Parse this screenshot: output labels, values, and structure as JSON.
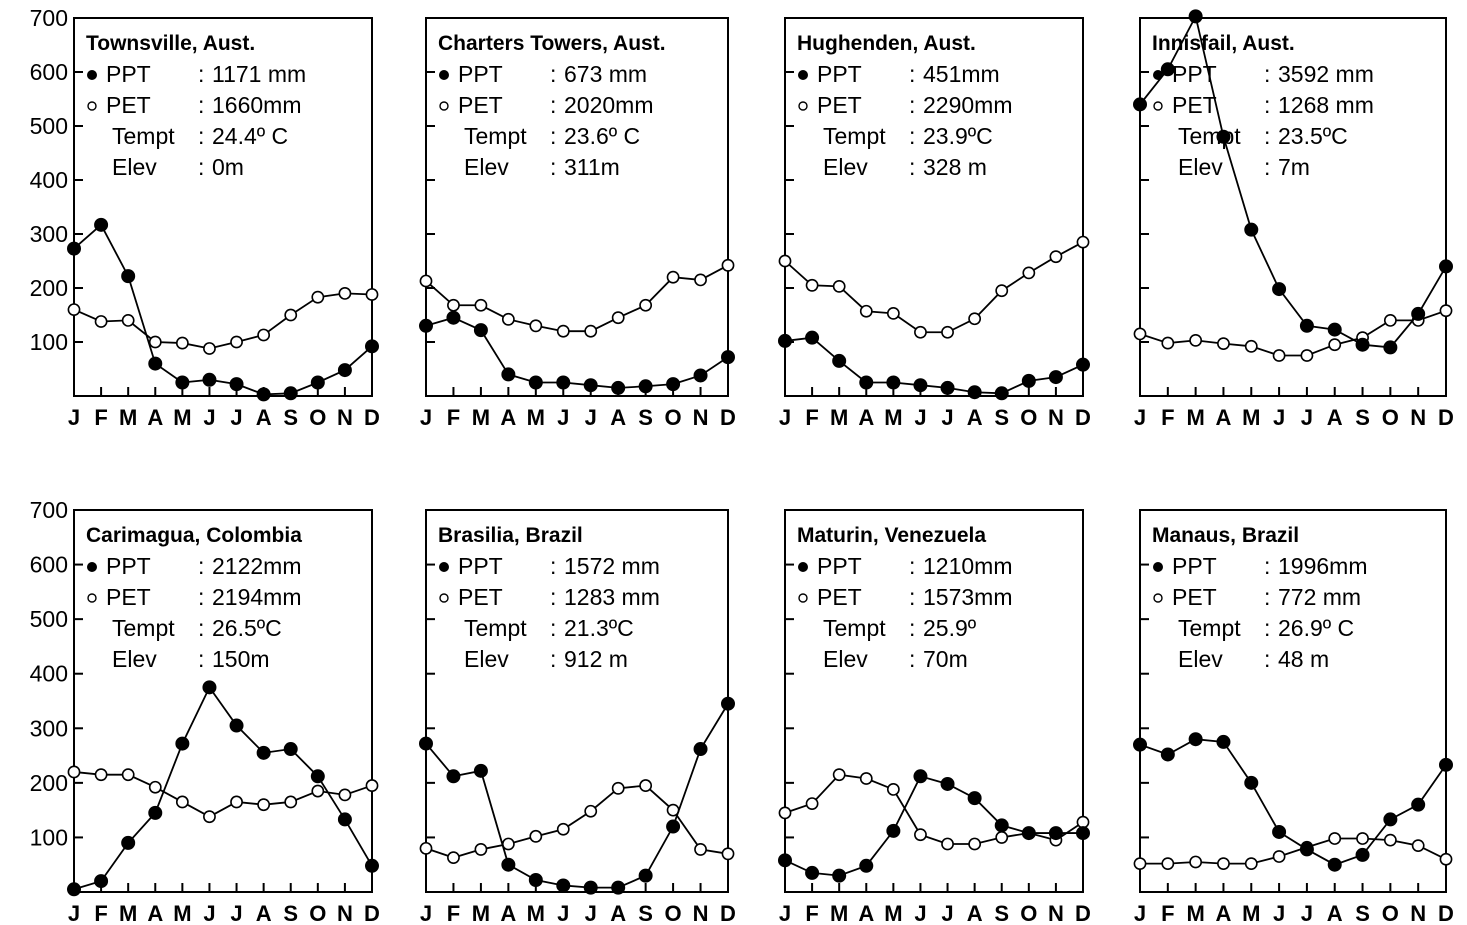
{
  "figure": {
    "month_labels": [
      "J",
      "F",
      "M",
      "A",
      "M",
      "J",
      "J",
      "A",
      "S",
      "O",
      "N",
      "D"
    ],
    "y_tick_labels": [
      "700",
      "600",
      "500",
      "400",
      "300",
      "200",
      "100"
    ],
    "y_tick_values": [
      700,
      600,
      500,
      400,
      300,
      200,
      100
    ]
  },
  "chart_data": [
    {
      "type": "line",
      "title": "Townsville, Aust.",
      "ylim": [
        0,
        700
      ],
      "grid": false,
      "categories": [
        "J",
        "F",
        "M",
        "A",
        "M",
        "J",
        "J",
        "A",
        "S",
        "O",
        "N",
        "D"
      ],
      "info": [
        {
          "marker": "filled",
          "label": "PPT",
          "sep": ":",
          "value": "1171 mm"
        },
        {
          "marker": "open",
          "label": "PET",
          "sep": ":",
          "value": "1660mm"
        },
        {
          "marker": "none",
          "label": "Tempt",
          "sep": ":",
          "value": "24.4º C"
        },
        {
          "marker": "none",
          "label": "Elev",
          "sep": ":",
          "value": "0m"
        }
      ],
      "series": [
        {
          "name": "PPT",
          "marker": "filled",
          "values": [
            273,
            317,
            222,
            60,
            25,
            30,
            22,
            3,
            5,
            25,
            48,
            92
          ]
        },
        {
          "name": "PET",
          "marker": "open",
          "values": [
            160,
            138,
            140,
            100,
            98,
            88,
            100,
            113,
            150,
            183,
            190,
            188
          ]
        }
      ]
    },
    {
      "type": "line",
      "title": "Charters Towers, Aust.",
      "ylim": [
        0,
        700
      ],
      "grid": false,
      "categories": [
        "J",
        "F",
        "M",
        "A",
        "M",
        "J",
        "J",
        "A",
        "S",
        "O",
        "N",
        "D"
      ],
      "info": [
        {
          "marker": "filled",
          "label": "PPT",
          "sep": ":",
          "value": "673 mm"
        },
        {
          "marker": "open",
          "label": "PET",
          "sep": ":",
          "value": "2020mm"
        },
        {
          "marker": "none",
          "label": "Tempt",
          "sep": ":",
          "value": "23.6º C"
        },
        {
          "marker": "none",
          "label": "Elev",
          "sep": ":",
          "value": "311m"
        }
      ],
      "series": [
        {
          "name": "PPT",
          "marker": "filled",
          "values": [
            130,
            145,
            122,
            40,
            25,
            25,
            20,
            15,
            18,
            22,
            38,
            72
          ]
        },
        {
          "name": "PET",
          "marker": "open",
          "values": [
            213,
            168,
            168,
            142,
            130,
            120,
            120,
            145,
            168,
            220,
            215,
            242
          ]
        }
      ]
    },
    {
      "type": "line",
      "title": "Hughenden, Aust.",
      "ylim": [
        0,
        700
      ],
      "grid": false,
      "categories": [
        "J",
        "F",
        "M",
        "A",
        "M",
        "J",
        "J",
        "A",
        "S",
        "O",
        "N",
        "D"
      ],
      "info": [
        {
          "marker": "filled",
          "label": "PPT",
          "sep": ":",
          "value": "451mm"
        },
        {
          "marker": "open",
          "label": "PET",
          "sep": ":",
          "value": "2290mm"
        },
        {
          "marker": "none",
          "label": "Tempt",
          "sep": ":",
          "value": "23.9ºC"
        },
        {
          "marker": "none",
          "label": "Elev",
          "sep": ":",
          "value": "328 m"
        }
      ],
      "series": [
        {
          "name": "PPT",
          "marker": "filled",
          "values": [
            102,
            108,
            65,
            25,
            25,
            20,
            15,
            7,
            5,
            28,
            35,
            58
          ]
        },
        {
          "name": "PET",
          "marker": "open",
          "values": [
            250,
            205,
            203,
            157,
            153,
            118,
            118,
            143,
            195,
            228,
            258,
            285
          ]
        }
      ]
    },
    {
      "type": "line",
      "title": "Innisfail, Aust.",
      "ylim": [
        0,
        700
      ],
      "grid": false,
      "categories": [
        "J",
        "F",
        "M",
        "A",
        "M",
        "J",
        "J",
        "A",
        "S",
        "O",
        "N",
        "D"
      ],
      "info": [
        {
          "marker": "filled",
          "label": "PPT",
          "sep": ":",
          "value": "3592 mm"
        },
        {
          "marker": "open",
          "label": "PET",
          "sep": ":",
          "value": "1268 mm"
        },
        {
          "marker": "none",
          "label": "Tempt",
          "sep": ":",
          "value": "23.5ºC"
        },
        {
          "marker": "none",
          "label": "Elev",
          "sep": ":",
          "value": "7m"
        }
      ],
      "series": [
        {
          "name": "PPT",
          "marker": "filled",
          "values": [
            540,
            605,
            703,
            480,
            308,
            198,
            130,
            123,
            95,
            90,
            152,
            240
          ]
        },
        {
          "name": "PET",
          "marker": "open",
          "values": [
            115,
            98,
            103,
            97,
            92,
            75,
            75,
            95,
            108,
            140,
            140,
            158
          ]
        }
      ]
    },
    {
      "type": "line",
      "title": "Carimagua, Colombia",
      "ylim": [
        0,
        700
      ],
      "grid": false,
      "categories": [
        "J",
        "F",
        "M",
        "A",
        "M",
        "J",
        "J",
        "A",
        "S",
        "O",
        "N",
        "D"
      ],
      "info": [
        {
          "marker": "filled",
          "label": "PPT",
          "sep": ":",
          "value": "2122mm"
        },
        {
          "marker": "open",
          "label": "PET",
          "sep": ":",
          "value": "2194mm"
        },
        {
          "marker": "none",
          "label": "Tempt",
          "sep": ":",
          "value": "26.5ºC"
        },
        {
          "marker": "none",
          "label": "Elev",
          "sep": ":",
          "value": "150m"
        }
      ],
      "series": [
        {
          "name": "PPT",
          "marker": "filled",
          "values": [
            5,
            20,
            90,
            145,
            272,
            375,
            305,
            255,
            262,
            212,
            133,
            48
          ]
        },
        {
          "name": "PET",
          "marker": "open",
          "values": [
            220,
            215,
            215,
            192,
            165,
            138,
            165,
            160,
            165,
            185,
            178,
            195
          ]
        }
      ]
    },
    {
      "type": "line",
      "title": "Brasilia, Brazil",
      "ylim": [
        0,
        700
      ],
      "grid": false,
      "categories": [
        "J",
        "F",
        "M",
        "A",
        "M",
        "J",
        "J",
        "A",
        "S",
        "O",
        "N",
        "D"
      ],
      "info": [
        {
          "marker": "filled",
          "label": "PPT",
          "sep": ":",
          "value": "1572 mm"
        },
        {
          "marker": "open",
          "label": "PET",
          "sep": ":",
          "value": "1283 mm"
        },
        {
          "marker": "none",
          "label": "Tempt",
          "sep": ":",
          "value": "21.3ºC"
        },
        {
          "marker": "none",
          "label": "Elev",
          "sep": ":",
          "value": "912 m"
        }
      ],
      "series": [
        {
          "name": "PPT",
          "marker": "filled",
          "values": [
            272,
            212,
            222,
            50,
            22,
            12,
            8,
            8,
            30,
            120,
            262,
            345
          ]
        },
        {
          "name": "PET",
          "marker": "open",
          "values": [
            80,
            63,
            78,
            88,
            102,
            115,
            148,
            190,
            195,
            150,
            78,
            70
          ]
        }
      ]
    },
    {
      "type": "line",
      "title": "Maturin, Venezuela",
      "ylim": [
        0,
        700
      ],
      "grid": false,
      "categories": [
        "J",
        "F",
        "M",
        "A",
        "M",
        "J",
        "J",
        "A",
        "S",
        "O",
        "N",
        "D"
      ],
      "info": [
        {
          "marker": "filled",
          "label": "PPT",
          "sep": ":",
          "value": "1210mm"
        },
        {
          "marker": "open",
          "label": "PET",
          "sep": ":",
          "value": "1573mm"
        },
        {
          "marker": "none",
          "label": "Tempt",
          "sep": ":",
          "value": "25.9º"
        },
        {
          "marker": "none",
          "label": "Elev",
          "sep": ":",
          "value": "70m"
        }
      ],
      "series": [
        {
          "name": "PPT",
          "marker": "filled",
          "values": [
            58,
            35,
            30,
            48,
            112,
            212,
            198,
            172,
            122,
            108,
            108,
            108
          ]
        },
        {
          "name": "PET",
          "marker": "open",
          "values": [
            145,
            162,
            215,
            208,
            188,
            105,
            88,
            88,
            100,
            108,
            95,
            128
          ]
        }
      ]
    },
    {
      "type": "line",
      "title": "Manaus, Brazil",
      "ylim": [
        0,
        700
      ],
      "grid": false,
      "categories": [
        "J",
        "F",
        "M",
        "A",
        "M",
        "J",
        "J",
        "A",
        "S",
        "O",
        "N",
        "D"
      ],
      "info": [
        {
          "marker": "filled",
          "label": "PPT",
          "sep": ":",
          "value": "1996mm"
        },
        {
          "marker": "open",
          "label": "PET",
          "sep": ":",
          "value": "772 mm"
        },
        {
          "marker": "none",
          "label": "Tempt",
          "sep": ":",
          "value": "26.9º C"
        },
        {
          "marker": "none",
          "label": "Elev",
          "sep": ":",
          "value": "48 m"
        }
      ],
      "series": [
        {
          "name": "PPT",
          "marker": "filled",
          "values": [
            270,
            252,
            280,
            275,
            200,
            110,
            78,
            50,
            68,
            133,
            160,
            233
          ]
        },
        {
          "name": "PET",
          "marker": "open",
          "values": [
            52,
            52,
            55,
            52,
            52,
            65,
            82,
            98,
            98,
            95,
            85,
            60
          ]
        }
      ]
    }
  ]
}
